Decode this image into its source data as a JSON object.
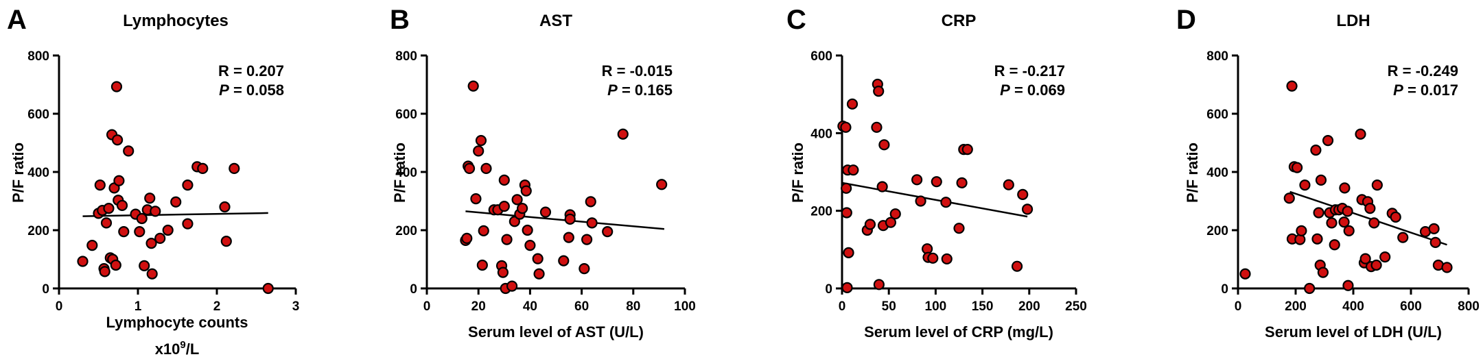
{
  "chart_data": [
    {
      "type": "scatter",
      "panel_letter": "A",
      "title": "Lymphocytes",
      "xlabel": "Lymphocyte counts",
      "xlabel_unit": "x10",
      "xlabel_unit_sup": "9",
      "xlabel_unit_suffix": "/L",
      "ylabel": "P/F ratio",
      "xlim": [
        0,
        3
      ],
      "ylim": [
        0,
        800
      ],
      "xticks": [
        0,
        1,
        2,
        3
      ],
      "yticks": [
        0,
        200,
        400,
        600,
        800
      ],
      "stats": {
        "r_text": "R = 0.207",
        "p_label": "P",
        "p_value": " = 0.058"
      },
      "regression": {
        "x": [
          0.3,
          2.65
        ],
        "y": [
          248,
          259
        ]
      },
      "points": [
        {
          "x": 0.3,
          "y": 93
        },
        {
          "x": 0.42,
          "y": 148
        },
        {
          "x": 0.5,
          "y": 258
        },
        {
          "x": 0.52,
          "y": 355
        },
        {
          "x": 0.55,
          "y": 268
        },
        {
          "x": 0.57,
          "y": 68
        },
        {
          "x": 0.58,
          "y": 58
        },
        {
          "x": 0.6,
          "y": 225
        },
        {
          "x": 0.63,
          "y": 275
        },
        {
          "x": 0.65,
          "y": 105
        },
        {
          "x": 0.67,
          "y": 528
        },
        {
          "x": 0.68,
          "y": 100
        },
        {
          "x": 0.7,
          "y": 345
        },
        {
          "x": 0.72,
          "y": 80
        },
        {
          "x": 0.73,
          "y": 693
        },
        {
          "x": 0.74,
          "y": 510
        },
        {
          "x": 0.75,
          "y": 303
        },
        {
          "x": 0.76,
          "y": 370
        },
        {
          "x": 0.8,
          "y": 285
        },
        {
          "x": 0.82,
          "y": 195
        },
        {
          "x": 0.88,
          "y": 472
        },
        {
          "x": 0.97,
          "y": 255
        },
        {
          "x": 1.02,
          "y": 195
        },
        {
          "x": 1.05,
          "y": 240
        },
        {
          "x": 1.08,
          "y": 78
        },
        {
          "x": 1.12,
          "y": 270
        },
        {
          "x": 1.15,
          "y": 310
        },
        {
          "x": 1.17,
          "y": 155
        },
        {
          "x": 1.18,
          "y": 50
        },
        {
          "x": 1.22,
          "y": 265
        },
        {
          "x": 1.28,
          "y": 172
        },
        {
          "x": 1.38,
          "y": 200
        },
        {
          "x": 1.48,
          "y": 297
        },
        {
          "x": 1.63,
          "y": 355
        },
        {
          "x": 1.63,
          "y": 222
        },
        {
          "x": 1.75,
          "y": 418
        },
        {
          "x": 1.82,
          "y": 412
        },
        {
          "x": 2.1,
          "y": 280
        },
        {
          "x": 2.12,
          "y": 162
        },
        {
          "x": 2.22,
          "y": 412
        },
        {
          "x": 2.65,
          "y": 0
        }
      ]
    },
    {
      "type": "scatter",
      "panel_letter": "B",
      "title": "AST",
      "xlabel": "Serum level of AST (U/L)",
      "ylabel": "P/F ratio",
      "xlim": [
        0,
        100
      ],
      "ylim": [
        0,
        800
      ],
      "xticks": [
        0,
        20,
        40,
        60,
        80,
        100
      ],
      "yticks": [
        0,
        200,
        400,
        600,
        800
      ],
      "stats": {
        "r_text": "R = -0.015",
        "p_label": "P",
        "p_value": " = 0.165"
      },
      "regression": {
        "x": [
          15,
          92
        ],
        "y": [
          265,
          204
        ]
      },
      "points": [
        {
          "x": 15,
          "y": 165
        },
        {
          "x": 15.5,
          "y": 172
        },
        {
          "x": 16,
          "y": 420
        },
        {
          "x": 16.5,
          "y": 412
        },
        {
          "x": 18,
          "y": 695
        },
        {
          "x": 19,
          "y": 308
        },
        {
          "x": 20,
          "y": 472
        },
        {
          "x": 21,
          "y": 508
        },
        {
          "x": 21.5,
          "y": 80
        },
        {
          "x": 22,
          "y": 198
        },
        {
          "x": 23,
          "y": 412
        },
        {
          "x": 26,
          "y": 270
        },
        {
          "x": 27.5,
          "y": 270
        },
        {
          "x": 29,
          "y": 78
        },
        {
          "x": 29.5,
          "y": 55
        },
        {
          "x": 30,
          "y": 282
        },
        {
          "x": 30,
          "y": 372
        },
        {
          "x": 30.5,
          "y": 0
        },
        {
          "x": 31,
          "y": 168
        },
        {
          "x": 33,
          "y": 8
        },
        {
          "x": 34,
          "y": 230
        },
        {
          "x": 35,
          "y": 305
        },
        {
          "x": 36,
          "y": 255
        },
        {
          "x": 37,
          "y": 275
        },
        {
          "x": 38,
          "y": 355
        },
        {
          "x": 38.5,
          "y": 335
        },
        {
          "x": 39,
          "y": 200
        },
        {
          "x": 40,
          "y": 148
        },
        {
          "x": 43,
          "y": 102
        },
        {
          "x": 43.5,
          "y": 50
        },
        {
          "x": 46,
          "y": 262
        },
        {
          "x": 53,
          "y": 95
        },
        {
          "x": 55,
          "y": 175
        },
        {
          "x": 55.5,
          "y": 253
        },
        {
          "x": 55.5,
          "y": 238
        },
        {
          "x": 61,
          "y": 68
        },
        {
          "x": 62,
          "y": 168
        },
        {
          "x": 63.5,
          "y": 298
        },
        {
          "x": 64,
          "y": 225
        },
        {
          "x": 70,
          "y": 195
        },
        {
          "x": 76,
          "y": 530
        },
        {
          "x": 91,
          "y": 357
        }
      ]
    },
    {
      "type": "scatter",
      "panel_letter": "C",
      "title": "CRP",
      "xlabel": "Serum level of CRP (mg/L)",
      "ylabel": "P/F ratio",
      "xlim": [
        0,
        250
      ],
      "ylim": [
        0,
        600
      ],
      "xticks": [
        0,
        50,
        100,
        150,
        200,
        250
      ],
      "yticks": [
        0,
        200,
        400,
        600
      ],
      "stats": {
        "r_text": "R = -0.217",
        "p_label": "P",
        "p_value": " = 0.069"
      },
      "regression": {
        "x": [
          0,
          198
        ],
        "y": [
          272,
          185
        ]
      },
      "points": [
        {
          "x": 1,
          "y": 418
        },
        {
          "x": 4,
          "y": 415
        },
        {
          "x": 4.5,
          "y": 258
        },
        {
          "x": 5,
          "y": 195
        },
        {
          "x": 5.5,
          "y": 2
        },
        {
          "x": 6,
          "y": 305
        },
        {
          "x": 7,
          "y": 92
        },
        {
          "x": 11,
          "y": 475
        },
        {
          "x": 12,
          "y": 305
        },
        {
          "x": 27,
          "y": 150
        },
        {
          "x": 30,
          "y": 165
        },
        {
          "x": 37,
          "y": 415
        },
        {
          "x": 38,
          "y": 526
        },
        {
          "x": 39,
          "y": 508
        },
        {
          "x": 39.5,
          "y": 10
        },
        {
          "x": 43,
          "y": 262
        },
        {
          "x": 44,
          "y": 162
        },
        {
          "x": 45,
          "y": 370
        },
        {
          "x": 52,
          "y": 170
        },
        {
          "x": 57,
          "y": 192
        },
        {
          "x": 80,
          "y": 280
        },
        {
          "x": 84,
          "y": 225
        },
        {
          "x": 91,
          "y": 102
        },
        {
          "x": 92,
          "y": 80
        },
        {
          "x": 97,
          "y": 78
        },
        {
          "x": 101,
          "y": 275
        },
        {
          "x": 111,
          "y": 222
        },
        {
          "x": 112,
          "y": 76
        },
        {
          "x": 125,
          "y": 155
        },
        {
          "x": 128,
          "y": 272
        },
        {
          "x": 130,
          "y": 358
        },
        {
          "x": 134,
          "y": 358
        },
        {
          "x": 178,
          "y": 267
        },
        {
          "x": 187,
          "y": 57
        },
        {
          "x": 193,
          "y": 242
        },
        {
          "x": 198,
          "y": 204
        }
      ]
    },
    {
      "type": "scatter",
      "panel_letter": "D",
      "title": "LDH",
      "xlabel": "Serum level of LDH (U/L)",
      "ylabel": "P/F ratio",
      "xlim": [
        0,
        800
      ],
      "ylim": [
        0,
        800
      ],
      "xticks": [
        0,
        200,
        400,
        600,
        800
      ],
      "yticks": [
        0,
        200,
        400,
        600,
        800
      ],
      "stats": {
        "r_text": "R = -0.249",
        "p_label": "P",
        "p_value": " = 0.017"
      },
      "regression": {
        "x": [
          180,
          725
        ],
        "y": [
          332,
          150
        ]
      },
      "points": [
        {
          "x": 25,
          "y": 50
        },
        {
          "x": 178,
          "y": 310
        },
        {
          "x": 187,
          "y": 695
        },
        {
          "x": 188,
          "y": 170
        },
        {
          "x": 195,
          "y": 418
        },
        {
          "x": 205,
          "y": 415
        },
        {
          "x": 215,
          "y": 168
        },
        {
          "x": 220,
          "y": 198
        },
        {
          "x": 232,
          "y": 355
        },
        {
          "x": 248,
          "y": 0
        },
        {
          "x": 270,
          "y": 475
        },
        {
          "x": 275,
          "y": 170
        },
        {
          "x": 280,
          "y": 260
        },
        {
          "x": 285,
          "y": 80
        },
        {
          "x": 288,
          "y": 372
        },
        {
          "x": 295,
          "y": 55
        },
        {
          "x": 312,
          "y": 508
        },
        {
          "x": 318,
          "y": 260
        },
        {
          "x": 325,
          "y": 225
        },
        {
          "x": 335,
          "y": 150
        },
        {
          "x": 338,
          "y": 270
        },
        {
          "x": 350,
          "y": 270
        },
        {
          "x": 362,
          "y": 275
        },
        {
          "x": 368,
          "y": 228
        },
        {
          "x": 370,
          "y": 345
        },
        {
          "x": 380,
          "y": 265
        },
        {
          "x": 382,
          "y": 10
        },
        {
          "x": 385,
          "y": 198
        },
        {
          "x": 425,
          "y": 530
        },
        {
          "x": 430,
          "y": 305
        },
        {
          "x": 438,
          "y": 88
        },
        {
          "x": 442,
          "y": 102
        },
        {
          "x": 450,
          "y": 298
        },
        {
          "x": 458,
          "y": 275
        },
        {
          "x": 462,
          "y": 75
        },
        {
          "x": 472,
          "y": 225
        },
        {
          "x": 480,
          "y": 80
        },
        {
          "x": 483,
          "y": 355
        },
        {
          "x": 510,
          "y": 108
        },
        {
          "x": 535,
          "y": 258
        },
        {
          "x": 547,
          "y": 245
        },
        {
          "x": 572,
          "y": 175
        },
        {
          "x": 650,
          "y": 195
        },
        {
          "x": 680,
          "y": 205
        },
        {
          "x": 685,
          "y": 158
        },
        {
          "x": 695,
          "y": 80
        },
        {
          "x": 725,
          "y": 72
        }
      ]
    }
  ],
  "style": {
    "point_fill": "#d01010",
    "point_stroke": "#000000",
    "line_color": "#000000",
    "axis_color": "#000000"
  }
}
